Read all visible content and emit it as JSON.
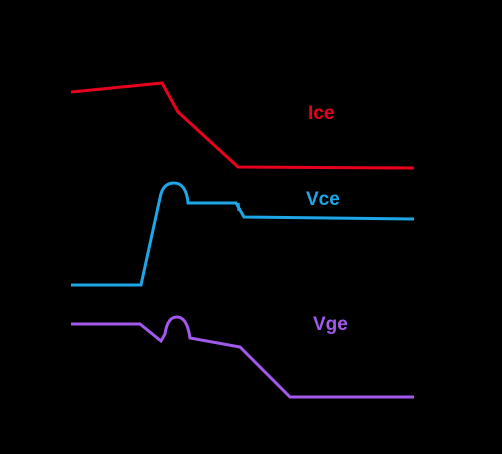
{
  "background": "#000000",
  "waveforms": [
    {
      "key": "ice",
      "label": "Ice",
      "color": "#e8001c"
    },
    {
      "key": "vce",
      "label": "Vce",
      "color": "#1ea7e8"
    },
    {
      "key": "vge",
      "label": "Vge",
      "color": "#a259ec"
    }
  ]
}
